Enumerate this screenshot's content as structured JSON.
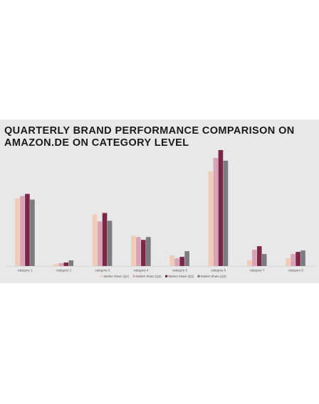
{
  "chart_data": {
    "type": "bar",
    "title": "QUARTERLY BRAND PERFORMANCE COMPARISON ON AMAZON.DE ON CATEGORY LEVEL",
    "xlabel": "",
    "ylabel": "",
    "categories": [
      "category 1",
      "category 2",
      "category 3",
      "category 4",
      "category 5",
      "category 6",
      "category 7",
      "category 8"
    ],
    "ylim": [
      0,
      165
    ],
    "grid": false,
    "legend_position": "bottom",
    "series": [
      {
        "name": "Market Share (Q1)",
        "color": "#f0cbb8",
        "values": [
          96,
          3,
          73,
          43,
          15,
          134,
          8,
          11
        ]
      },
      {
        "name": "Market Share (Q2)",
        "color": "#d8a3b4",
        "values": [
          99,
          4,
          63,
          41,
          11,
          153,
          23,
          17
        ]
      },
      {
        "name": "Market Share (Q3)",
        "color": "#7d2746",
        "values": [
          102,
          5,
          75,
          37,
          13,
          164,
          28,
          20
        ]
      },
      {
        "name": "Market Share (Q4)",
        "color": "#7c7c7e",
        "values": [
          94,
          8,
          64,
          41,
          21,
          149,
          17,
          22
        ]
      }
    ]
  }
}
